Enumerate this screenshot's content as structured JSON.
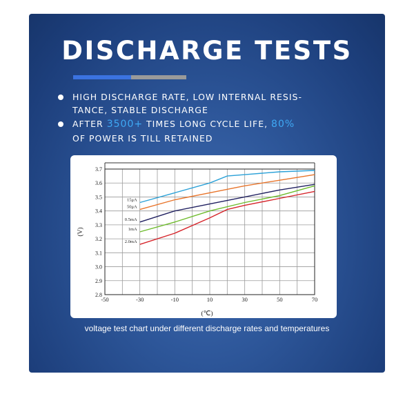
{
  "header": {
    "title": "DISCHARGE TESTS"
  },
  "colors": {
    "accent_bar": "#3b73e0",
    "secondary_bar": "#9a9a9a",
    "highlight": "#3fa9f5"
  },
  "bullets": [
    {
      "line1": "HIGH DISCHARGE RATE, LOW INTERNAL RESIS-",
      "line2": "TANCE, STABLE DISCHARGE"
    },
    {
      "pre": "AFTER ",
      "hl1": "3500+",
      "mid": " TIMES LONG CYCLE LIFE, ",
      "hl2": "80%",
      "line2": "OF POWER IS TILL RETAINED"
    }
  ],
  "caption": "voltage test chart under different discharge rates and temperatures",
  "chart_data": {
    "type": "line",
    "xlabel": "(℃)",
    "ylabel": "(V)",
    "xlim": [
      -50,
      70
    ],
    "ylim": [
      2.8,
      3.7
    ],
    "xticks": [
      -50,
      -30,
      -10,
      10,
      30,
      50,
      70
    ],
    "yticks": [
      2.8,
      2.9,
      3.0,
      3.1,
      3.2,
      3.3,
      3.4,
      3.5,
      3.6,
      3.7
    ],
    "grid": true,
    "series": [
      {
        "name": "15μA",
        "color": "#2aa1d8",
        "x": [
          -30,
          -10,
          10,
          20,
          30,
          50,
          70
        ],
        "y": [
          3.46,
          3.53,
          3.6,
          3.65,
          3.66,
          3.68,
          3.69
        ]
      },
      {
        "name": "50μA",
        "color": "#e8742a",
        "x": [
          -30,
          -10,
          10,
          30,
          50,
          70
        ],
        "y": [
          3.41,
          3.48,
          3.53,
          3.58,
          3.62,
          3.66
        ]
      },
      {
        "name": "0.5mA",
        "color": "#202060",
        "x": [
          -30,
          -10,
          10,
          30,
          50,
          70
        ],
        "y": [
          3.32,
          3.4,
          3.45,
          3.5,
          3.55,
          3.59
        ]
      },
      {
        "name": "1mA",
        "color": "#6dbb2b",
        "x": [
          -30,
          -10,
          10,
          30,
          50,
          70
        ],
        "y": [
          3.25,
          3.32,
          3.4,
          3.46,
          3.51,
          3.58
        ]
      },
      {
        "name": "2.0mA",
        "color": "#d6252b",
        "x": [
          -30,
          -10,
          10,
          20,
          30,
          50,
          70
        ],
        "y": [
          3.16,
          3.24,
          3.35,
          3.41,
          3.44,
          3.49,
          3.54
        ]
      }
    ]
  }
}
